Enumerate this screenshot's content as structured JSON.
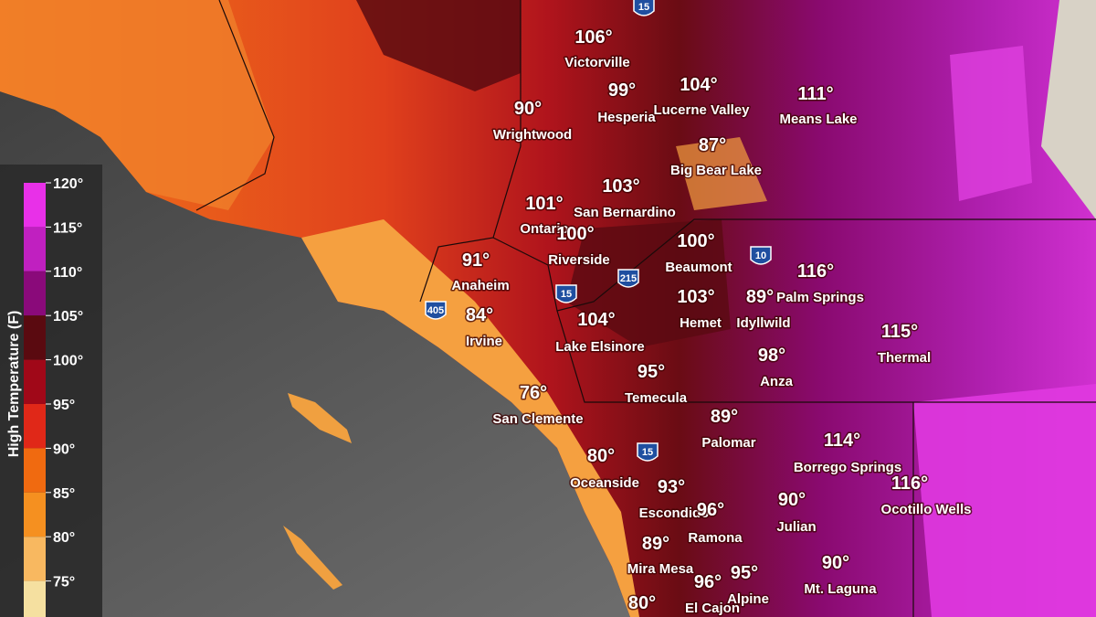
{
  "legend": {
    "title": "High Temperature (F)",
    "labels": [
      "120°",
      "115°",
      "110°",
      "105°",
      "100°",
      "95°",
      "90°",
      "85°",
      "80°",
      "75°"
    ]
  },
  "highways": [
    "15",
    "215",
    "15",
    "10",
    "405",
    "15"
  ],
  "cities": [
    {
      "temp": "106°",
      "name": "Victorville"
    },
    {
      "temp": "99°",
      "name": "Hesperia"
    },
    {
      "temp": "104°",
      "name": "Lucerne Valley"
    },
    {
      "temp": "111°",
      "name": "Means Lake"
    },
    {
      "temp": "90°",
      "name": "Wrightwood"
    },
    {
      "temp": "87°",
      "name": "Big Bear Lake"
    },
    {
      "temp": "103°",
      "name": "San Bernardino"
    },
    {
      "temp": "101°",
      "name": "Ontario"
    },
    {
      "temp": "100°",
      "name": "Riverside"
    },
    {
      "temp": "100°",
      "name": "Beaumont"
    },
    {
      "temp": "91°",
      "name": "Anaheim"
    },
    {
      "temp": "116°",
      "name": "Palm Springs"
    },
    {
      "temp": "103°",
      "name": "Hemet"
    },
    {
      "temp": "89°",
      "name": "Idyllwild"
    },
    {
      "temp": "84°",
      "name": "Irvine"
    },
    {
      "temp": "104°",
      "name": "Lake Elsinore"
    },
    {
      "temp": "115°",
      "name": "Thermal"
    },
    {
      "temp": "98°",
      "name": "Anza"
    },
    {
      "temp": "95°",
      "name": "Temecula"
    },
    {
      "temp": "76°",
      "name": "San Clemente"
    },
    {
      "temp": "89°",
      "name": "Palomar"
    },
    {
      "temp": "114°",
      "name": "Borrego Springs"
    },
    {
      "temp": "80°",
      "name": "Oceanside"
    },
    {
      "temp": "116°",
      "name": "Ocotillo Wells"
    },
    {
      "temp": "93°",
      "name": "Escondido"
    },
    {
      "temp": "96°",
      "name": "Ramona"
    },
    {
      "temp": "90°",
      "name": "Julian"
    },
    {
      "temp": "89°",
      "name": "Mira Mesa"
    },
    {
      "temp": "90°",
      "name": "Mt. Laguna"
    },
    {
      "temp": "96°",
      "name": "El Cajon"
    },
    {
      "temp": "95°",
      "name": "Alpine"
    },
    {
      "temp": "80°"
    }
  ]
}
